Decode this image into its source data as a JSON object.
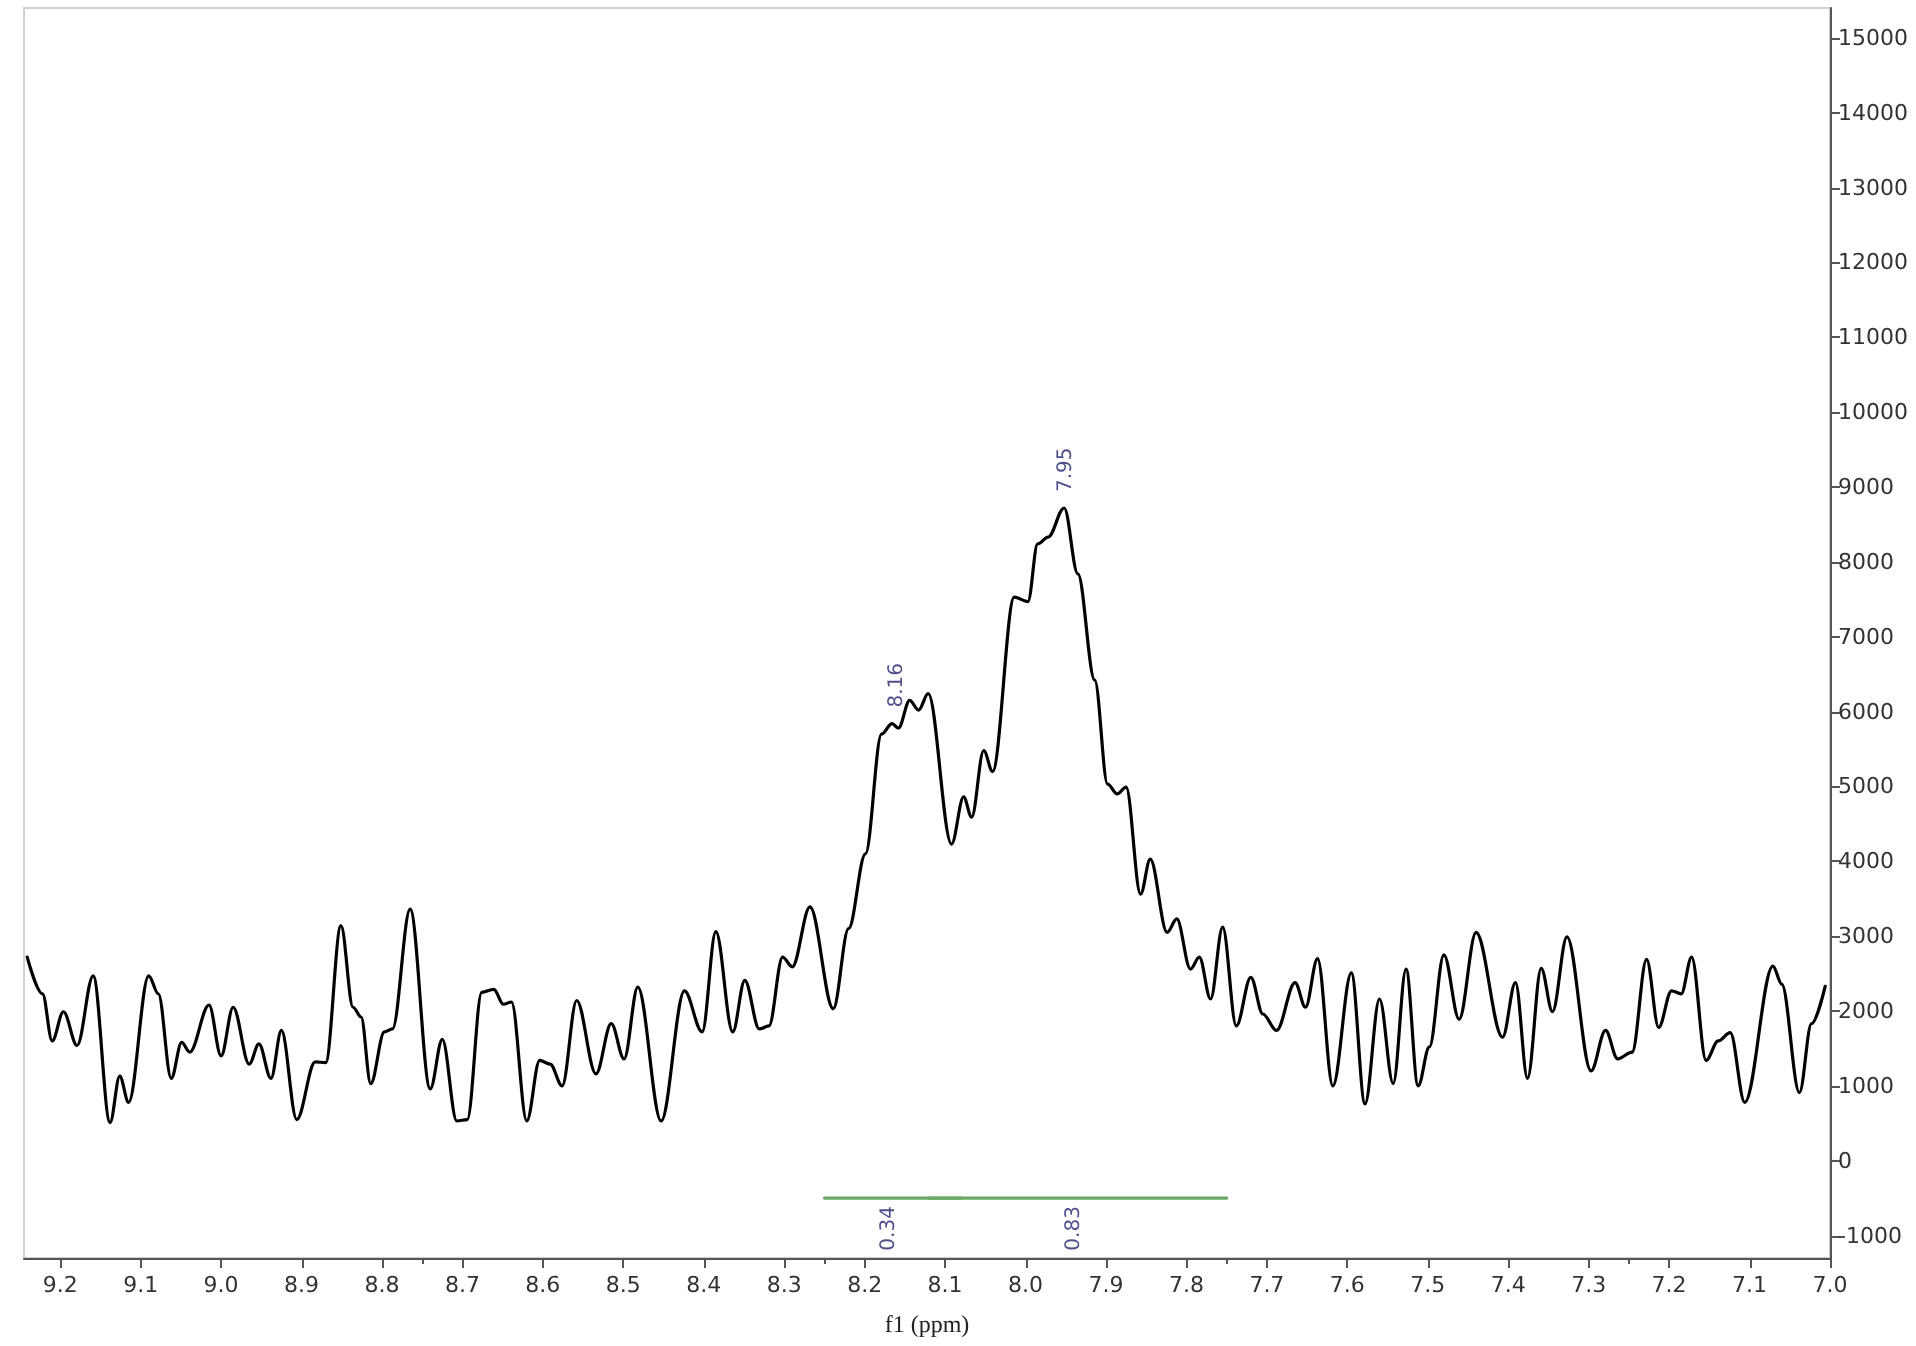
{
  "chart_data": {
    "type": "line",
    "xlabel": "f1 (ppm)",
    "xlim": [
      9.245,
      7.0
    ],
    "xticks": [
      9.2,
      9.1,
      {
        "value": 9,
        "label": "9.0"
      },
      8.9,
      8.8,
      8.7,
      8.6,
      8.5,
      8.4,
      8.3,
      8.2,
      8.1,
      {
        "value": 8,
        "label": "8.0"
      },
      7.9,
      7.8,
      7.7,
      7.6,
      7.5,
      7.4,
      7.3,
      7.2,
      7.1,
      {
        "value": 7,
        "label": "7.0"
      }
    ],
    "ylim": [
      -1300,
      15400
    ],
    "yticks": [
      -1000,
      0,
      1000,
      2000,
      3000,
      4000,
      5000,
      6000,
      7000,
      8000,
      9000,
      10000,
      11000,
      12000,
      13000,
      14000,
      15000
    ],
    "grid": false,
    "marker": "none",
    "series": [
      {
        "color": "#000000",
        "x": [
          9.241,
          9.222,
          9.21,
          9.196,
          9.179,
          9.159,
          9.138,
          9.126,
          9.115,
          9.09,
          9.078,
          9.062,
          9.049,
          9.039,
          9.015,
          9.0,
          8.985,
          8.965,
          8.953,
          8.938,
          8.925,
          8.906,
          8.883,
          8.87,
          8.851,
          8.836,
          8.826,
          8.814,
          8.797,
          8.787,
          8.765,
          8.74,
          8.725,
          8.707,
          8.694,
          8.676,
          8.661,
          8.649,
          8.639,
          8.62,
          8.604,
          8.591,
          8.576,
          8.558,
          8.534,
          8.515,
          8.499,
          8.482,
          8.453,
          8.424,
          8.402,
          8.385,
          8.364,
          8.349,
          8.331,
          8.319,
          8.302,
          8.29,
          8.268,
          8.239,
          8.22,
          8.199,
          8.179,
          8.166,
          8.158,
          8.144,
          8.133,
          8.121,
          8.092,
          8.077,
          8.067,
          8.052,
          8.041,
          8.014,
          7.997,
          7.985,
          7.972,
          7.952,
          7.935,
          7.914,
          7.898,
          7.886,
          7.875,
          7.857,
          7.845,
          7.824,
          7.812,
          7.795,
          7.784,
          7.77,
          7.755,
          7.738,
          7.72,
          7.705,
          7.688,
          7.665,
          7.652,
          7.637,
          7.618,
          7.595,
          7.578,
          7.56,
          7.543,
          7.527,
          7.512,
          7.498,
          7.48,
          7.461,
          7.44,
          7.407,
          7.391,
          7.376,
          7.359,
          7.345,
          7.327,
          7.297,
          7.279,
          7.264,
          7.246,
          7.228,
          7.213,
          7.197,
          7.185,
          7.172,
          7.154,
          7.139,
          7.124,
          7.106,
          7.071,
          7.06,
          7.038,
          7.023,
          7.006
        ],
        "values": [
          2720,
          2230,
          1600,
          1990,
          1540,
          2470,
          510,
          1130,
          780,
          2470,
          2230,
          1100,
          1580,
          1450,
          2080,
          1400,
          2050,
          1290,
          1560,
          1100,
          1740,
          550,
          1320,
          1310,
          3140,
          2050,
          1920,
          1030,
          1720,
          1760,
          3360,
          960,
          1620,
          530,
          550,
          2250,
          2290,
          2090,
          2120,
          530,
          1340,
          1290,
          1000,
          2140,
          1160,
          1830,
          1360,
          2320,
          530,
          2270,
          1720,
          3060,
          1720,
          2410,
          1760,
          1800,
          2720,
          2590,
          3390,
          2030,
          3100,
          4100,
          5700,
          5840,
          5780,
          6150,
          6020,
          6240,
          4230,
          4860,
          4590,
          5480,
          5200,
          7530,
          7470,
          8240,
          8330,
          8720,
          7840,
          6420,
          5030,
          4900,
          4990,
          3560,
          4030,
          3050,
          3230,
          2560,
          2720,
          2160,
          3120,
          1800,
          2450,
          1960,
          1740,
          2380,
          2050,
          2700,
          1000,
          2510,
          760,
          2160,
          1030,
          2560,
          1000,
          1520,
          2750,
          1890,
          3050,
          1650,
          2380,
          1100,
          2570,
          1990,
          2990,
          1200,
          1740,
          1360,
          1450,
          2690,
          1780,
          2270,
          2230,
          2720,
          1340,
          1600,
          1710,
          780,
          2600,
          2360,
          910,
          1830,
          2330
        ]
      },
      {
        "color": "#6aaa64",
        "x": [
          8.25,
          8.08
        ],
        "values": [
          -500,
          -500
        ]
      },
      {
        "color": "#6aaa64",
        "x": [
          8.12,
          7.75
        ],
        "values": [
          -500,
          -500
        ]
      }
    ],
    "annotations": [
      {
        "text": "8.16",
        "x": 8.16,
        "y": 5840
      },
      {
        "text": "7.95",
        "x": 7.95,
        "y": 8720
      },
      {
        "text": "0.34",
        "x": 8.17,
        "y": -500
      },
      {
        "text": "0.83",
        "x": 7.94,
        "y": -500
      }
    ]
  }
}
